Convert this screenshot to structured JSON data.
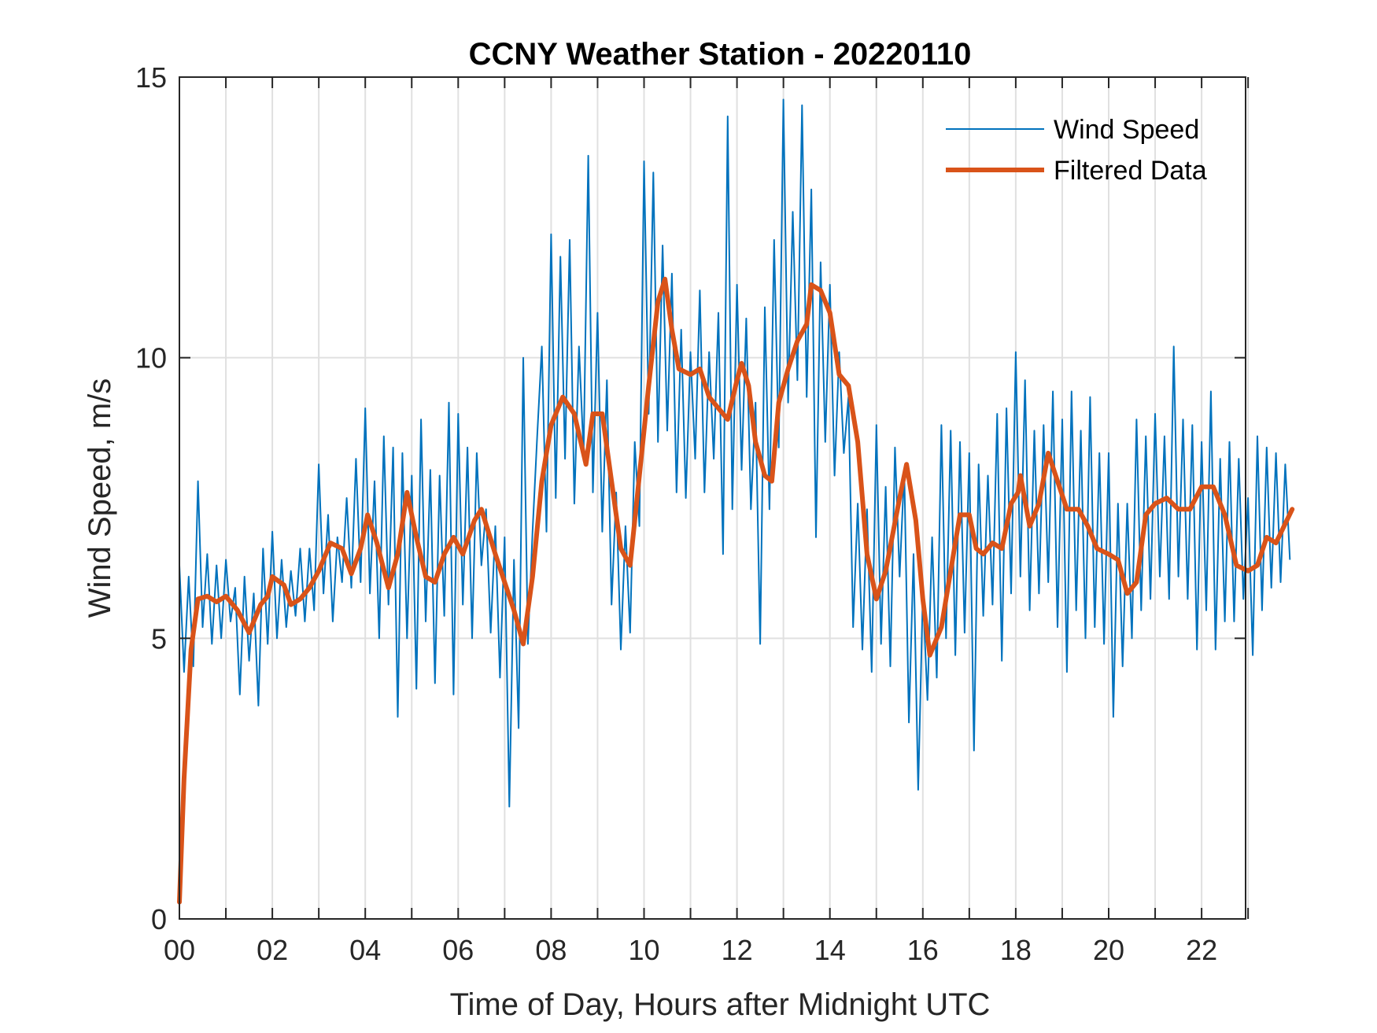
{
  "chart_data": {
    "type": "line",
    "title": "CCNY Weather Station - 20220110",
    "xlabel": "Time of Day, Hours after Midnight UTC",
    "ylabel": "Wind Speed, m/s",
    "xlim": [
      0,
      23.95
    ],
    "ylim": [
      0,
      15
    ],
    "x_ticks": [
      0,
      2,
      4,
      6,
      8,
      10,
      12,
      14,
      16,
      18,
      20,
      22
    ],
    "x_tick_labels": [
      "00",
      "02",
      "04",
      "06",
      "08",
      "10",
      "12",
      "14",
      "16",
      "18",
      "20",
      "22"
    ],
    "y_ticks": [
      0,
      5,
      10,
      15
    ],
    "y_tick_labels": [
      "0",
      "5",
      "10",
      "15"
    ],
    "grid": true,
    "legend_placement": "top-right",
    "colors": {
      "wind_speed": "#0072BD",
      "filtered": "#D95319",
      "grid": "#e0e0e0",
      "axis": "#262626"
    },
    "series": [
      {
        "name": "Wind Speed",
        "x_step_hours": 0.1,
        "values": [
          6.3,
          4.4,
          6.1,
          4.5,
          7.8,
          5.2,
          6.5,
          4.9,
          6.3,
          5.0,
          6.4,
          5.3,
          5.9,
          4.0,
          6.1,
          4.6,
          5.8,
          3.8,
          6.6,
          4.9,
          6.9,
          5.0,
          6.4,
          5.2,
          6.2,
          5.4,
          6.6,
          5.3,
          6.6,
          5.5,
          8.1,
          5.8,
          7.2,
          5.3,
          6.8,
          6.0,
          7.5,
          5.9,
          8.2,
          6.0,
          9.1,
          5.8,
          7.8,
          5.0,
          8.6,
          5.6,
          8.4,
          3.6,
          8.3,
          5.0,
          7.9,
          4.1,
          8.9,
          5.3,
          8.0,
          4.2,
          7.9,
          5.4,
          9.2,
          4.0,
          9.0,
          5.6,
          8.4,
          5.0,
          8.3,
          6.3,
          7.3,
          5.1,
          7.0,
          4.3,
          6.8,
          2.0,
          6.4,
          3.4,
          10.0,
          4.9,
          6.9,
          8.6,
          10.2,
          6.9,
          12.2,
          7.5,
          11.8,
          8.2,
          12.1,
          7.4,
          10.2,
          8.3,
          13.6,
          7.6,
          10.8,
          6.9,
          9.6,
          5.6,
          7.6,
          4.8,
          7.0,
          5.1,
          8.5,
          7.0,
          13.5,
          9.0,
          13.3,
          8.5,
          12.0,
          8.7,
          11.5,
          7.6,
          10.5,
          7.5,
          10.1,
          8.2,
          11.2,
          7.6,
          10.1,
          8.2,
          10.8,
          6.5,
          14.3,
          7.3,
          11.3,
          8.0,
          10.7,
          7.3,
          9.2,
          4.9,
          10.9,
          7.3,
          12.1,
          8.4,
          14.6,
          9.2,
          12.6,
          9.6,
          14.5,
          9.3,
          13.0,
          6.8,
          11.7,
          8.5,
          11.3,
          7.9,
          10.1,
          8.3,
          9.3,
          5.2,
          7.4,
          4.8,
          7.3,
          4.4,
          8.8,
          4.9,
          7.7,
          4.5,
          8.4,
          6.1,
          8.0,
          3.5,
          6.5,
          2.3,
          5.8,
          3.9,
          6.8,
          4.3,
          8.8,
          5.0,
          8.7,
          4.7,
          8.5,
          5.1,
          8.3,
          3.0,
          8.1,
          5.4,
          7.9,
          5.6,
          9.0,
          4.6,
          9.1,
          5.8,
          10.1,
          6.1,
          9.6,
          5.5,
          8.7,
          5.8,
          8.8,
          6.0,
          9.4,
          5.2,
          8.9,
          4.4,
          9.4,
          5.5,
          8.7,
          5.0,
          9.3,
          5.2,
          8.3,
          4.9,
          8.3,
          3.6,
          7.4,
          4.5,
          7.4,
          5.0,
          8.9,
          5.5,
          8.6,
          5.7,
          9.0,
          6.1,
          8.6,
          5.7,
          10.2,
          6.1,
          8.9,
          5.7,
          8.8,
          4.8,
          8.5,
          5.5,
          9.4,
          4.8,
          8.2,
          5.3,
          8.5,
          5.3,
          8.2,
          5.7,
          7.5,
          4.7,
          8.6,
          5.5,
          8.4,
          5.9,
          8.3,
          6.0,
          8.1,
          6.4
        ]
      },
      {
        "name": "Filtered Data",
        "points": [
          [
            0,
            0.3
          ],
          [
            0.1,
            2.5
          ],
          [
            0.25,
            4.8
          ],
          [
            0.4,
            5.7
          ],
          [
            0.6,
            5.75
          ],
          [
            0.8,
            5.65
          ],
          [
            1.0,
            5.75
          ],
          [
            1.25,
            5.5
          ],
          [
            1.5,
            5.1
          ],
          [
            1.75,
            5.6
          ],
          [
            1.9,
            5.75
          ],
          [
            2.0,
            6.1
          ],
          [
            2.25,
            5.95
          ],
          [
            2.4,
            5.6
          ],
          [
            2.6,
            5.7
          ],
          [
            2.8,
            5.9
          ],
          [
            3.0,
            6.2
          ],
          [
            3.25,
            6.7
          ],
          [
            3.5,
            6.6
          ],
          [
            3.7,
            6.15
          ],
          [
            3.9,
            6.6
          ],
          [
            4.05,
            7.2
          ],
          [
            4.25,
            6.7
          ],
          [
            4.5,
            5.9
          ],
          [
            4.7,
            6.5
          ],
          [
            4.9,
            7.6
          ],
          [
            5.1,
            6.8
          ],
          [
            5.3,
            6.1
          ],
          [
            5.5,
            6.0
          ],
          [
            5.7,
            6.5
          ],
          [
            5.9,
            6.8
          ],
          [
            6.1,
            6.5
          ],
          [
            6.35,
            7.1
          ],
          [
            6.5,
            7.3
          ],
          [
            6.8,
            6.5
          ],
          [
            7.0,
            6.0
          ],
          [
            7.2,
            5.5
          ],
          [
            7.4,
            4.9
          ],
          [
            7.6,
            6.1
          ],
          [
            7.8,
            7.8
          ],
          [
            8.0,
            8.8
          ],
          [
            8.25,
            9.3
          ],
          [
            8.5,
            9.0
          ],
          [
            8.75,
            8.1
          ],
          [
            8.9,
            9.0
          ],
          [
            9.1,
            9.0
          ],
          [
            9.3,
            7.8
          ],
          [
            9.5,
            6.6
          ],
          [
            9.7,
            6.3
          ],
          [
            9.9,
            7.9
          ],
          [
            10.1,
            9.5
          ],
          [
            10.3,
            11.0
          ],
          [
            10.45,
            11.4
          ],
          [
            10.6,
            10.5
          ],
          [
            10.75,
            9.8
          ],
          [
            11.0,
            9.7
          ],
          [
            11.2,
            9.8
          ],
          [
            11.4,
            9.3
          ],
          [
            11.6,
            9.1
          ],
          [
            11.8,
            8.9
          ],
          [
            12.0,
            9.6
          ],
          [
            12.1,
            9.9
          ],
          [
            12.25,
            9.5
          ],
          [
            12.4,
            8.5
          ],
          [
            12.6,
            7.9
          ],
          [
            12.75,
            7.8
          ],
          [
            12.9,
            9.2
          ],
          [
            13.1,
            9.8
          ],
          [
            13.3,
            10.3
          ],
          [
            13.5,
            10.6
          ],
          [
            13.6,
            11.3
          ],
          [
            13.8,
            11.2
          ],
          [
            14.0,
            10.8
          ],
          [
            14.2,
            9.7
          ],
          [
            14.4,
            9.5
          ],
          [
            14.6,
            8.5
          ],
          [
            14.8,
            6.5
          ],
          [
            15.0,
            5.7
          ],
          [
            15.2,
            6.2
          ],
          [
            15.5,
            7.5
          ],
          [
            15.65,
            8.1
          ],
          [
            15.85,
            7.1
          ],
          [
            16.0,
            5.7
          ],
          [
            16.15,
            4.7
          ],
          [
            16.4,
            5.2
          ],
          [
            16.6,
            6.2
          ],
          [
            16.8,
            7.2
          ],
          [
            17.0,
            7.2
          ],
          [
            17.15,
            6.6
          ],
          [
            17.3,
            6.5
          ],
          [
            17.5,
            6.7
          ],
          [
            17.7,
            6.6
          ],
          [
            17.9,
            7.4
          ],
          [
            18.05,
            7.6
          ],
          [
            18.1,
            7.9
          ],
          [
            18.3,
            7.0
          ],
          [
            18.5,
            7.4
          ],
          [
            18.7,
            8.3
          ],
          [
            18.9,
            7.8
          ],
          [
            19.1,
            7.3
          ],
          [
            19.35,
            7.3
          ],
          [
            19.55,
            7.0
          ],
          [
            19.75,
            6.6
          ],
          [
            20.0,
            6.5
          ],
          [
            20.2,
            6.4
          ],
          [
            20.4,
            5.8
          ],
          [
            20.6,
            6.0
          ],
          [
            20.8,
            7.2
          ],
          [
            21.0,
            7.4
          ],
          [
            21.25,
            7.5
          ],
          [
            21.5,
            7.3
          ],
          [
            21.75,
            7.3
          ],
          [
            22.0,
            7.7
          ],
          [
            22.25,
            7.7
          ],
          [
            22.5,
            7.2
          ],
          [
            22.75,
            6.3
          ],
          [
            23.0,
            6.2
          ],
          [
            23.2,
            6.3
          ],
          [
            23.4,
            6.8
          ],
          [
            23.6,
            6.7
          ],
          [
            23.95,
            7.3
          ]
        ]
      }
    ]
  }
}
